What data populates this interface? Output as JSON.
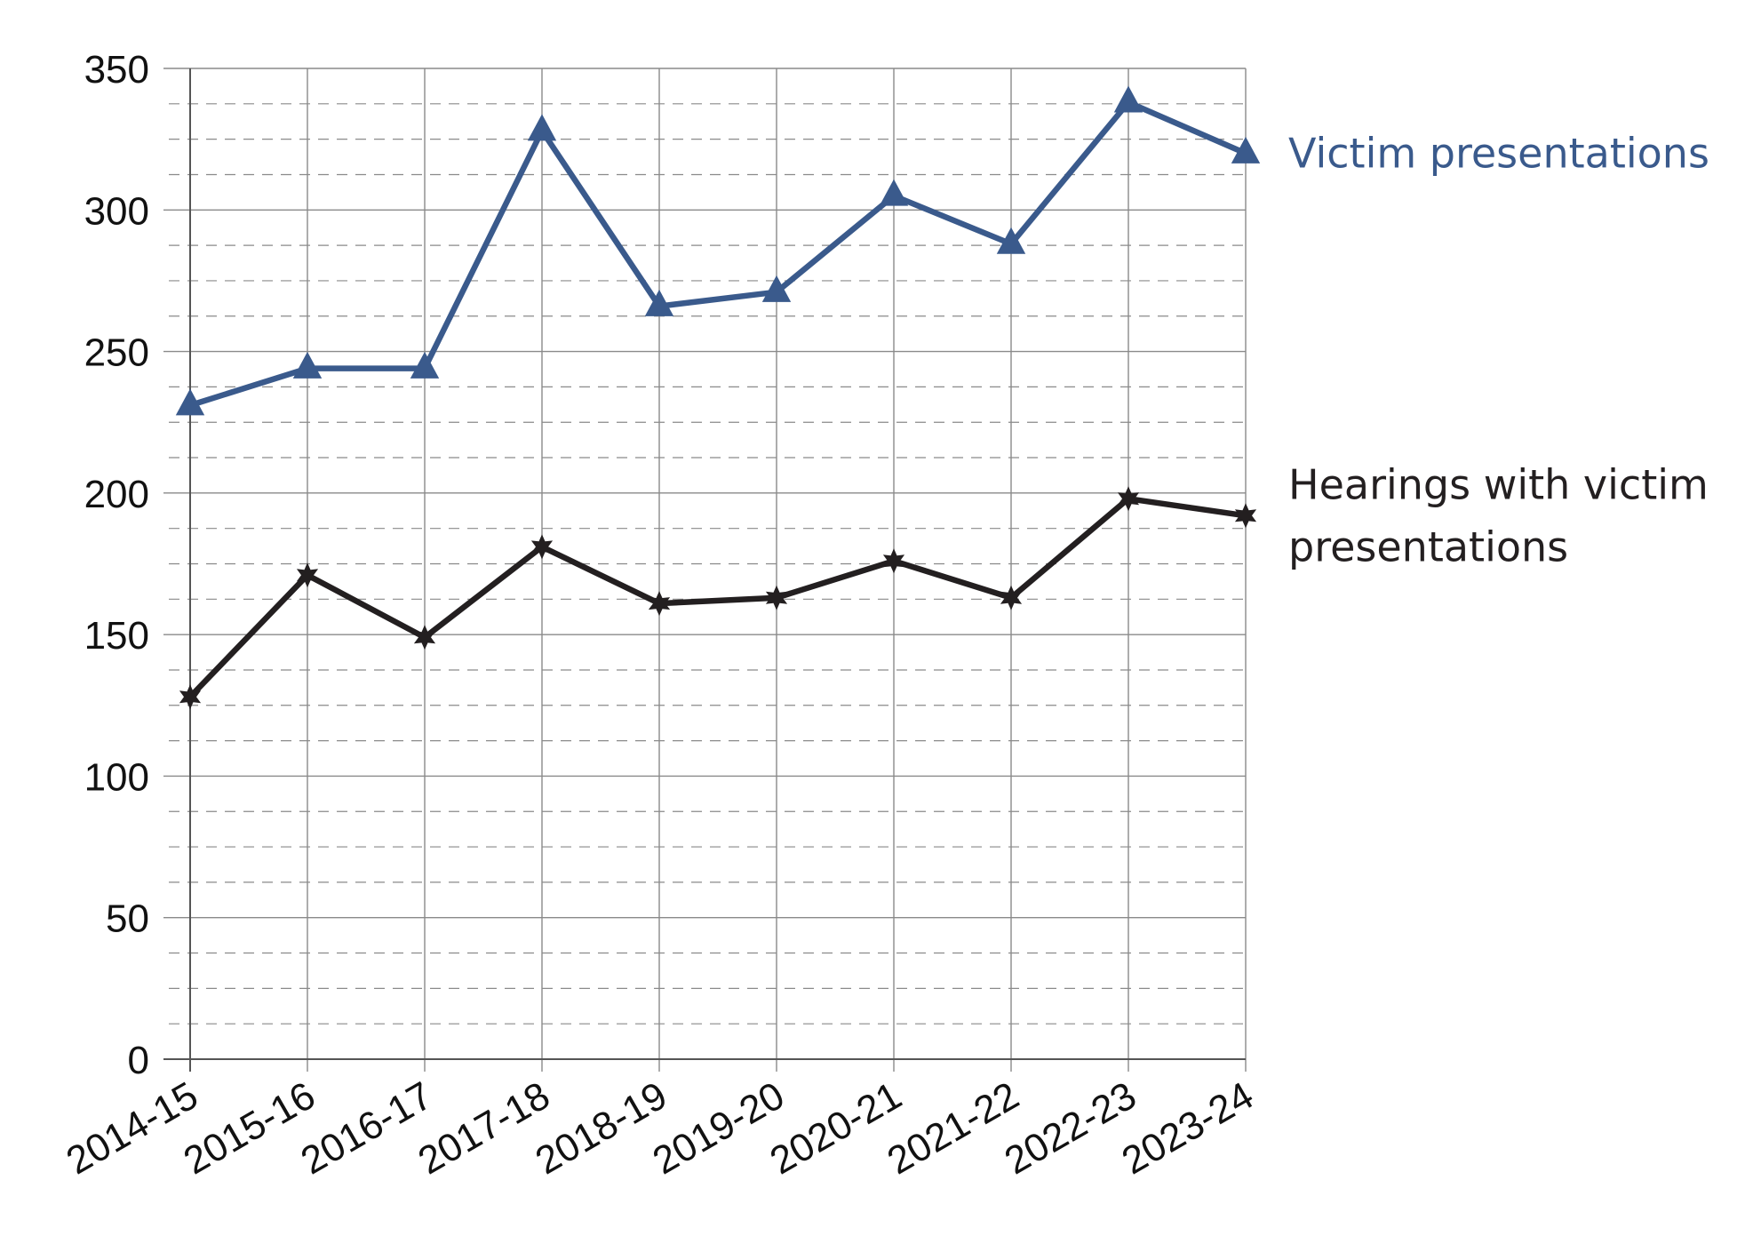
{
  "chart_data": {
    "type": "line",
    "categories": [
      "2014-15",
      "2015-16",
      "2016-17",
      "2017-18",
      "2018-19",
      "2019-20",
      "2020-21",
      "2021-22",
      "2022-23",
      "2023-24"
    ],
    "ylim": [
      0,
      350
    ],
    "y_ticks": [
      0,
      50,
      100,
      150,
      200,
      250,
      300,
      350
    ],
    "y_tick_labels": [
      "0",
      "50",
      "100",
      "150",
      "200",
      "250",
      "300",
      "350"
    ],
    "grid": {
      "major_horizontal": true,
      "minor_horizontal_dashed": true,
      "vertical": true
    },
    "legend": "inline-right",
    "series": [
      {
        "name": "Victim presentations",
        "label_lines": [
          "Victim presentations"
        ],
        "color": "#3a5a8c",
        "marker": "triangle",
        "values": [
          231,
          244,
          244,
          328,
          266,
          271,
          305,
          288,
          338,
          320
        ]
      },
      {
        "name": "Hearings with victim presentations",
        "label_lines": [
          "Hearings with victim",
          "presentations"
        ],
        "color": "#231f20",
        "marker": "star",
        "values": [
          128,
          171,
          149,
          181,
          161,
          163,
          176,
          163,
          198,
          192
        ]
      }
    ]
  }
}
